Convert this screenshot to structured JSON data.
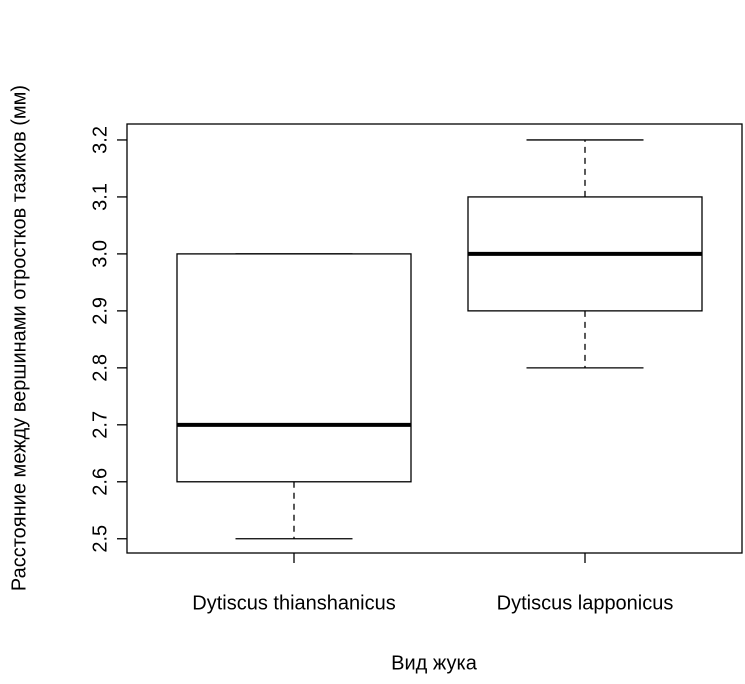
{
  "chart_data": {
    "type": "boxplot",
    "x_label": "Вид жука",
    "y_label": "Расстояние между вершинами отростков тазиков (мм)",
    "categories": [
      "Dytiscus thianshanicus",
      "Dytiscus lapponicus"
    ],
    "boxes": [
      {
        "min": 2.5,
        "q1": 2.6,
        "median": 2.7,
        "q3": 3.0,
        "max": 3.0
      },
      {
        "min": 2.8,
        "q1": 2.9,
        "median": 3.0,
        "q3": 3.1,
        "max": 3.2
      }
    ],
    "ylim": [
      2.475,
      3.228
    ],
    "yticks": [
      {
        "value": 2.5,
        "label": "2.5"
      },
      {
        "value": 2.6,
        "label": "2.6"
      },
      {
        "value": 2.7,
        "label": "2.7"
      },
      {
        "value": 2.8,
        "label": "2.8"
      },
      {
        "value": 2.9,
        "label": "2.9"
      },
      {
        "value": 3.0,
        "label": "3.0"
      },
      {
        "value": 3.1,
        "label": "3.1"
      },
      {
        "value": 3.2,
        "label": "3.2"
      }
    ],
    "color": "#ffffff"
  }
}
